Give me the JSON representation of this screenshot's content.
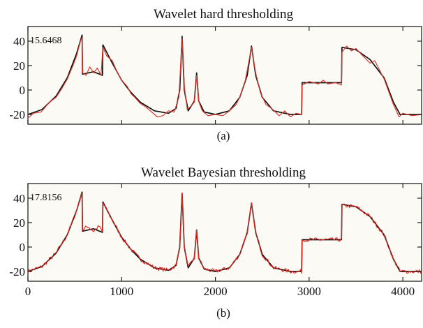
{
  "chart_data": [
    {
      "type": "line",
      "title": "Wavelet hard thresholding",
      "panel_label": "(a)",
      "annotation": "15.6468",
      "xlim": [
        0,
        4200
      ],
      "ylim": [
        -28,
        52
      ],
      "yticks": [
        40,
        20,
        0,
        -20
      ],
      "xticks": [],
      "grid": false,
      "legend": "none",
      "series": [
        {
          "color": "#111111",
          "role": "reference",
          "points": [
            [
              0,
              -20
            ],
            [
              150,
              -16
            ],
            [
              300,
              -5
            ],
            [
              420,
              10
            ],
            [
              520,
              30
            ],
            [
              578,
              45
            ],
            [
              582,
              13
            ],
            [
              700,
              15
            ],
            [
              795,
              12
            ],
            [
              800,
              37
            ],
            [
              900,
              22
            ],
            [
              1000,
              8
            ],
            [
              1100,
              -2
            ],
            [
              1200,
              -10
            ],
            [
              1350,
              -17
            ],
            [
              1500,
              -19
            ],
            [
              1580,
              -15
            ],
            [
              1620,
              0
            ],
            [
              1645,
              44
            ],
            [
              1668,
              0
            ],
            [
              1710,
              -17
            ],
            [
              1775,
              -9
            ],
            [
              1800,
              14
            ],
            [
              1822,
              -9
            ],
            [
              1880,
              -18
            ],
            [
              2000,
              -20
            ],
            [
              2150,
              -17
            ],
            [
              2260,
              -6
            ],
            [
              2340,
              12
            ],
            [
              2385,
              36
            ],
            [
              2430,
              12
            ],
            [
              2500,
              -6
            ],
            [
              2620,
              -17
            ],
            [
              2800,
              -20
            ],
            [
              2920,
              -20
            ],
            [
              2925,
              6
            ],
            [
              3345,
              6
            ],
            [
              3350,
              35
            ],
            [
              3500,
              33
            ],
            [
              3650,
              25
            ],
            [
              3800,
              10
            ],
            [
              3900,
              -10
            ],
            [
              3970,
              -20
            ],
            [
              4200,
              -20
            ]
          ]
        },
        {
          "color": "#d83a30",
          "role": "estimate",
          "points": [
            [
              0,
              -23
            ],
            [
              60,
              -19
            ],
            [
              140,
              -18
            ],
            [
              230,
              -10
            ],
            [
              300,
              -6
            ],
            [
              360,
              1
            ],
            [
              420,
              9
            ],
            [
              480,
              20
            ],
            [
              520,
              28
            ],
            [
              560,
              40
            ],
            [
              578,
              43
            ],
            [
              585,
              14
            ],
            [
              620,
              12
            ],
            [
              660,
              19
            ],
            [
              700,
              14
            ],
            [
              740,
              18
            ],
            [
              780,
              12
            ],
            [
              800,
              35
            ],
            [
              840,
              28
            ],
            [
              900,
              24
            ],
            [
              950,
              15
            ],
            [
              1000,
              8
            ],
            [
              1060,
              3
            ],
            [
              1100,
              -3
            ],
            [
              1140,
              -6
            ],
            [
              1200,
              -11
            ],
            [
              1260,
              -14
            ],
            [
              1320,
              -18
            ],
            [
              1380,
              -22
            ],
            [
              1440,
              -21
            ],
            [
              1500,
              -17
            ],
            [
              1560,
              -18
            ],
            [
              1610,
              -6
            ],
            [
              1645,
              42
            ],
            [
              1670,
              2
            ],
            [
              1700,
              -16
            ],
            [
              1740,
              -13
            ],
            [
              1775,
              -10
            ],
            [
              1800,
              12
            ],
            [
              1825,
              -10
            ],
            [
              1860,
              -17
            ],
            [
              1920,
              -21
            ],
            [
              2000,
              -20
            ],
            [
              2080,
              -21
            ],
            [
              2150,
              -17
            ],
            [
              2220,
              -12
            ],
            [
              2260,
              -6
            ],
            [
              2320,
              8
            ],
            [
              2385,
              35
            ],
            [
              2430,
              14
            ],
            [
              2480,
              -2
            ],
            [
              2540,
              -12
            ],
            [
              2600,
              -15
            ],
            [
              2680,
              -21
            ],
            [
              2740,
              -17
            ],
            [
              2800,
              -22
            ],
            [
              2860,
              -19
            ],
            [
              2920,
              -20
            ],
            [
              2925,
              4
            ],
            [
              3000,
              7
            ],
            [
              3100,
              5
            ],
            [
              3150,
              8
            ],
            [
              3200,
              5
            ],
            [
              3280,
              6
            ],
            [
              3345,
              4
            ],
            [
              3350,
              31
            ],
            [
              3400,
              36
            ],
            [
              3450,
              32
            ],
            [
              3500,
              34
            ],
            [
              3560,
              29
            ],
            [
              3650,
              22
            ],
            [
              3700,
              24
            ],
            [
              3800,
              9
            ],
            [
              3900,
              -12
            ],
            [
              3960,
              -22
            ],
            [
              4000,
              -19
            ],
            [
              4100,
              -21
            ],
            [
              4200,
              -20
            ]
          ]
        }
      ]
    },
    {
      "type": "line",
      "title": "Wavelet Bayesian thresholding",
      "panel_label": "(b)",
      "annotation": "17.8156",
      "xlim": [
        0,
        4200
      ],
      "ylim": [
        -28,
        52
      ],
      "yticks": [
        40,
        20,
        0,
        -20
      ],
      "xticks": [
        0,
        1000,
        2000,
        3000,
        4000
      ],
      "grid": false,
      "legend": "none",
      "series": [
        {
          "color": "#111111",
          "role": "reference",
          "points": [
            [
              0,
              -20
            ],
            [
              150,
              -16
            ],
            [
              300,
              -5
            ],
            [
              420,
              10
            ],
            [
              520,
              30
            ],
            [
              578,
              45
            ],
            [
              582,
              13
            ],
            [
              700,
              15
            ],
            [
              795,
              12
            ],
            [
              800,
              37
            ],
            [
              900,
              22
            ],
            [
              1000,
              8
            ],
            [
              1100,
              -2
            ],
            [
              1200,
              -10
            ],
            [
              1350,
              -17
            ],
            [
              1500,
              -19
            ],
            [
              1580,
              -15
            ],
            [
              1620,
              0
            ],
            [
              1645,
              44
            ],
            [
              1668,
              0
            ],
            [
              1710,
              -17
            ],
            [
              1775,
              -9
            ],
            [
              1800,
              14
            ],
            [
              1822,
              -9
            ],
            [
              1880,
              -18
            ],
            [
              2000,
              -20
            ],
            [
              2150,
              -17
            ],
            [
              2260,
              -6
            ],
            [
              2340,
              12
            ],
            [
              2385,
              36
            ],
            [
              2430,
              12
            ],
            [
              2500,
              -6
            ],
            [
              2620,
              -17
            ],
            [
              2800,
              -20
            ],
            [
              2920,
              -20
            ],
            [
              2925,
              6
            ],
            [
              3345,
              6
            ],
            [
              3350,
              35
            ],
            [
              3500,
              33
            ],
            [
              3650,
              25
            ],
            [
              3800,
              10
            ],
            [
              3900,
              -10
            ],
            [
              3970,
              -20
            ],
            [
              4200,
              -20
            ]
          ]
        },
        {
          "color": "#e02a22",
          "role": "estimate",
          "noise": 1.6,
          "points": [
            [
              0,
              -20
            ],
            [
              150,
              -16
            ],
            [
              300,
              -5
            ],
            [
              420,
              10
            ],
            [
              520,
              30
            ],
            [
              578,
              45
            ],
            [
              582,
              14
            ],
            [
              640,
              17
            ],
            [
              700,
              13
            ],
            [
              760,
              17
            ],
            [
              795,
              12
            ],
            [
              800,
              36
            ],
            [
              900,
              22
            ],
            [
              1000,
              8
            ],
            [
              1100,
              -2
            ],
            [
              1200,
              -10
            ],
            [
              1350,
              -17
            ],
            [
              1500,
              -19
            ],
            [
              1580,
              -15
            ],
            [
              1620,
              0
            ],
            [
              1645,
              43
            ],
            [
              1668,
              0
            ],
            [
              1710,
              -17
            ],
            [
              1775,
              -9
            ],
            [
              1800,
              13
            ],
            [
              1822,
              -9
            ],
            [
              1880,
              -18
            ],
            [
              2000,
              -20
            ],
            [
              2150,
              -17
            ],
            [
              2260,
              -6
            ],
            [
              2340,
              12
            ],
            [
              2385,
              35
            ],
            [
              2430,
              12
            ],
            [
              2500,
              -6
            ],
            [
              2620,
              -17
            ],
            [
              2800,
              -20
            ],
            [
              2920,
              -20
            ],
            [
              2925,
              6
            ],
            [
              3345,
              6
            ],
            [
              3350,
              34
            ],
            [
              3500,
              33
            ],
            [
              3650,
              25
            ],
            [
              3800,
              10
            ],
            [
              3900,
              -10
            ],
            [
              3970,
              -20
            ],
            [
              4200,
              -20
            ]
          ]
        }
      ]
    }
  ]
}
